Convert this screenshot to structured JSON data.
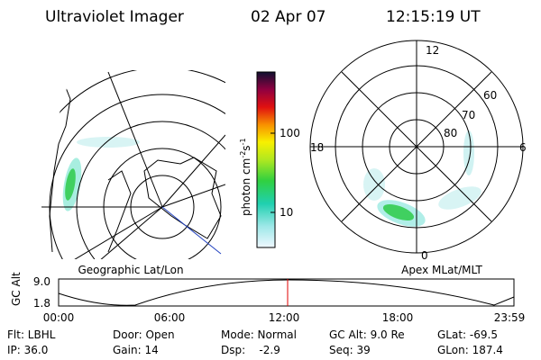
{
  "header": {
    "instrument": "Ultraviolet Imager",
    "date": "02 Apr 07",
    "time": "12:15:19 UT"
  },
  "colorbar": {
    "label": [
      "photon cm",
      "-2",
      "s",
      "-1"
    ],
    "ticks": [
      "100",
      "10"
    ]
  },
  "polar_labels": {
    "top": "12",
    "bottom": "0",
    "left": "18",
    "right": "6",
    "lat80": "80",
    "lat70": "70",
    "lat60": "60"
  },
  "panel_titles": {
    "left": "Geographic Lat/Lon",
    "right": "Apex MLat/MLT"
  },
  "timeline": {
    "axis_label": "GC Alt",
    "ymax": "9.0",
    "ymin": "1.8",
    "times": [
      "00:00",
      "06:00",
      "12:00",
      "18:00",
      "23:59"
    ]
  },
  "footer": {
    "rows": [
      [
        "Flt: LBHL",
        "Door: Open",
        "Mode: Normal",
        "GC Alt: 9.0 Re",
        "GLat: -69.5"
      ],
      [
        "IP: 36.0",
        "Gain: 14",
        "Dsp:    -2.9",
        "Seq: 39",
        "GLon: 187.4"
      ]
    ]
  }
}
